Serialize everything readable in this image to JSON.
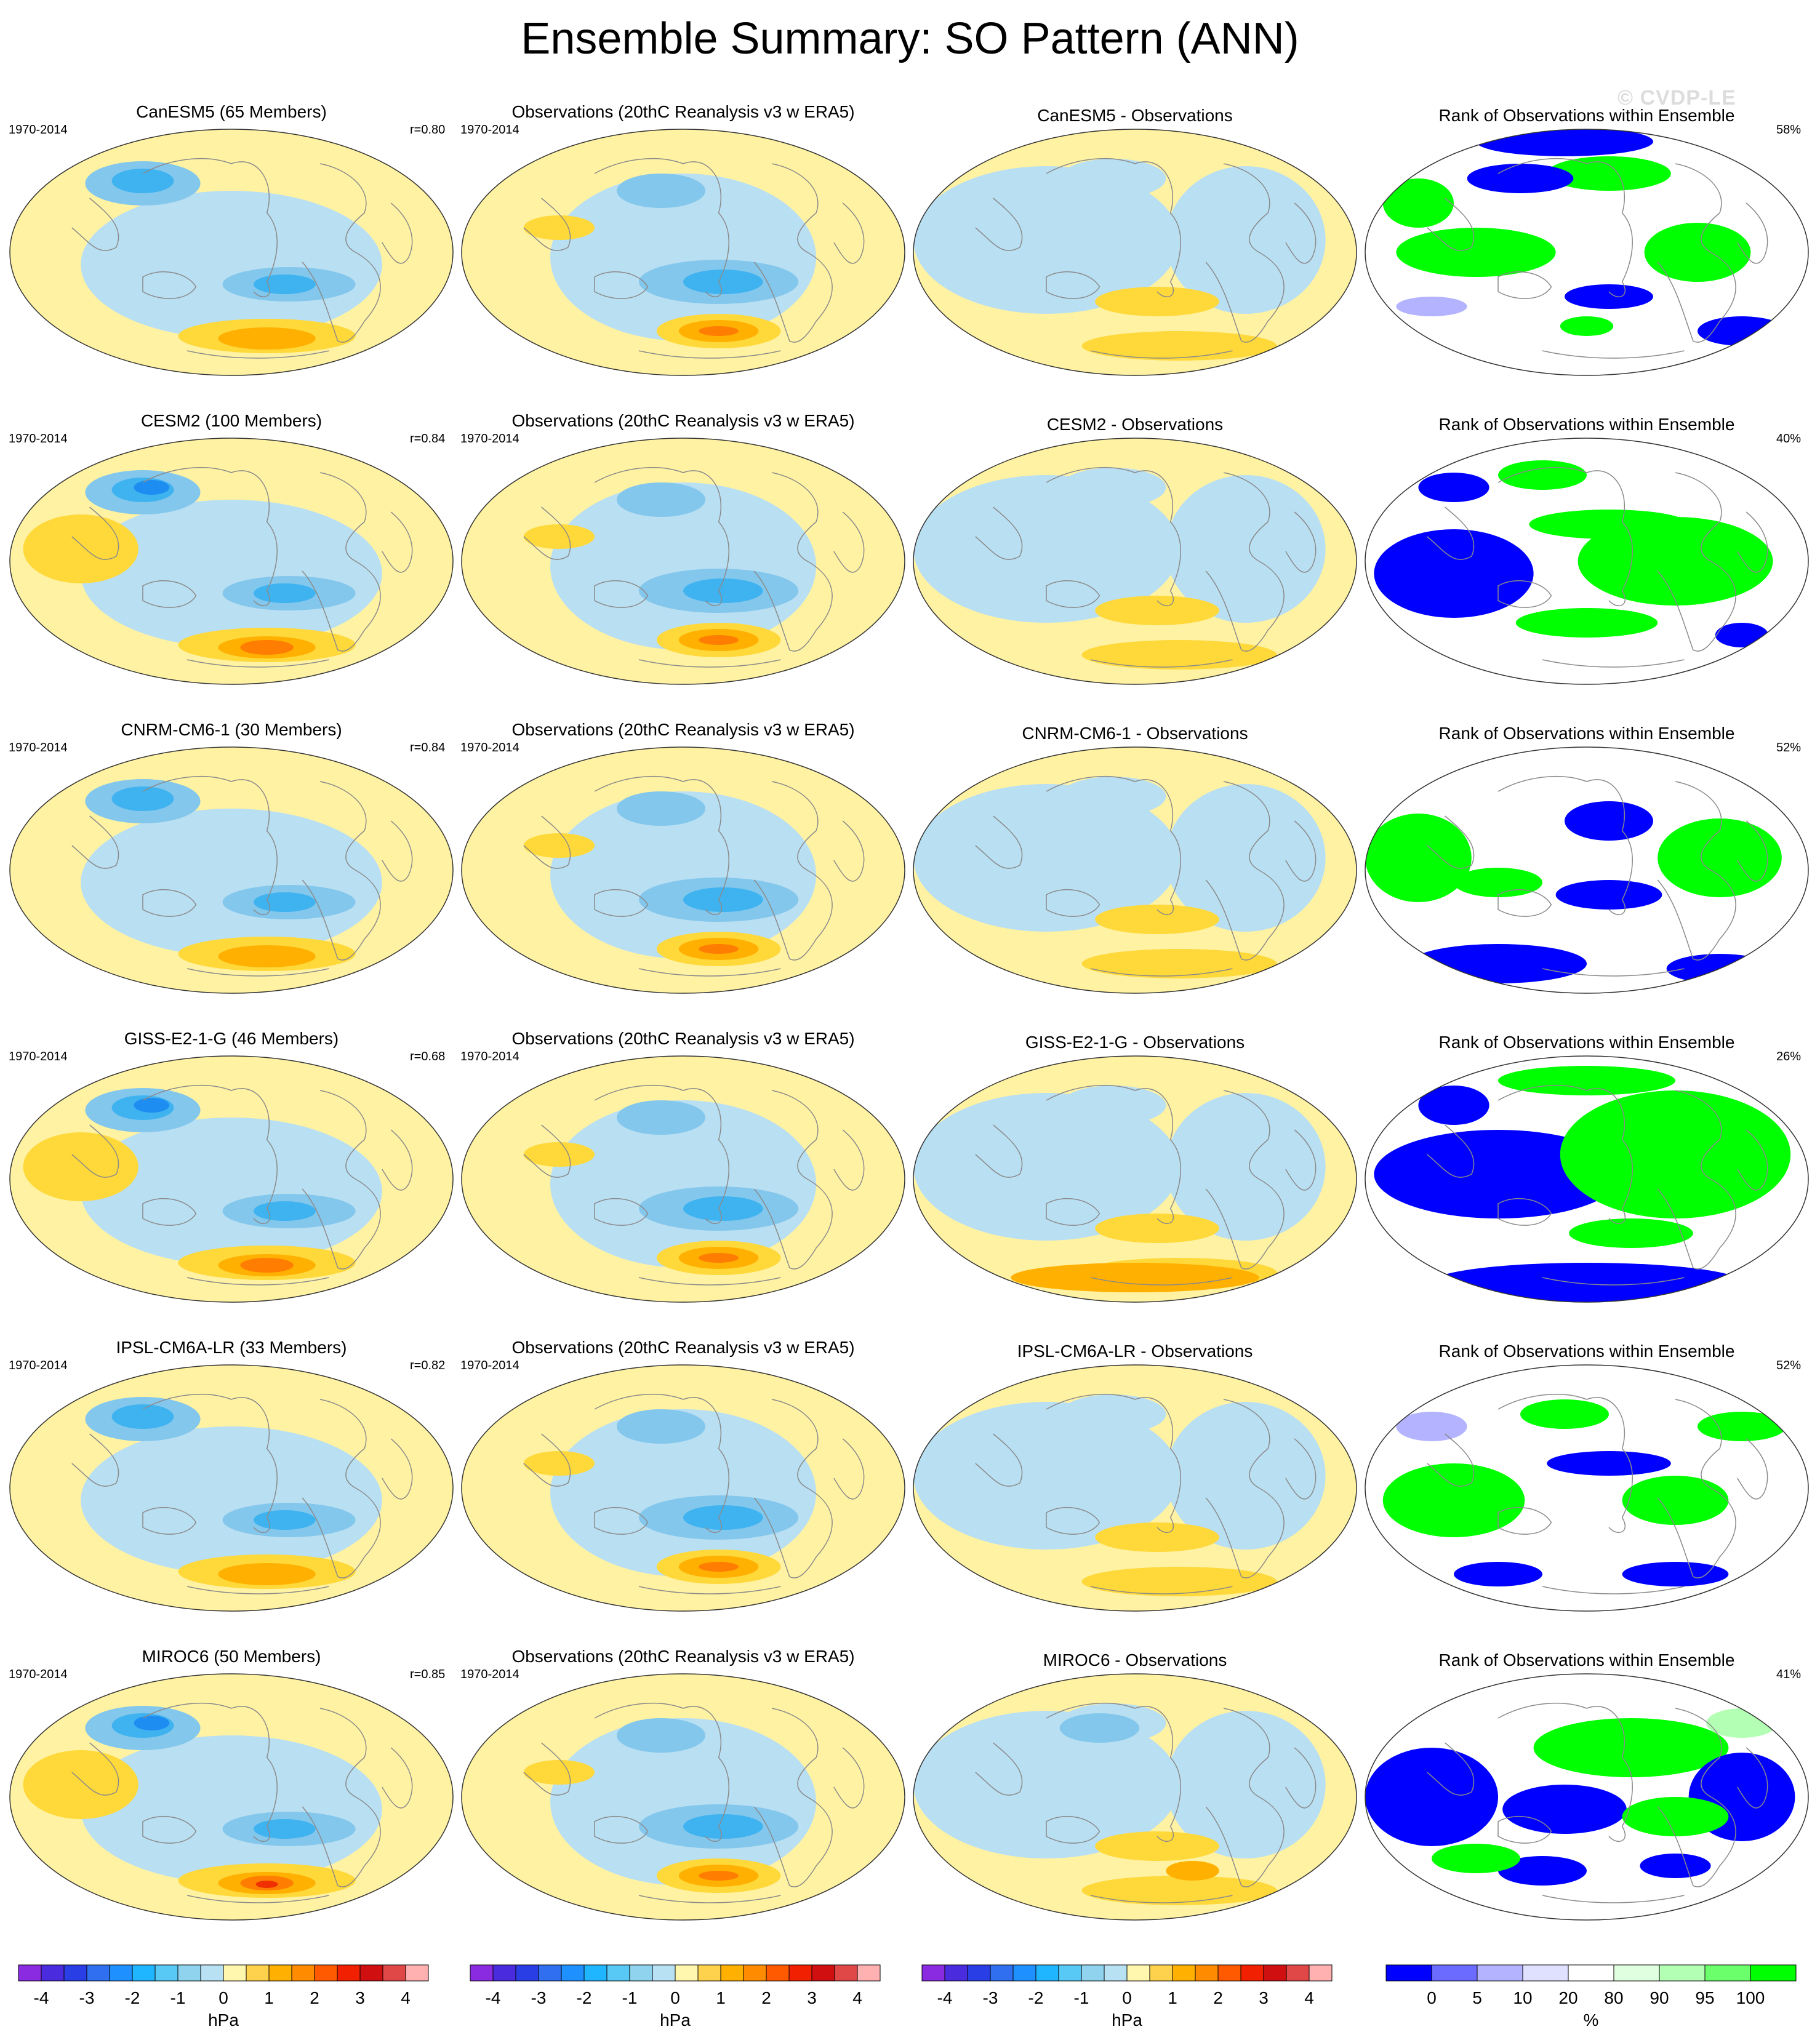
{
  "title": "Ensemble Summary: SO Pattern (ANN)",
  "watermark": "© CVDP-LE",
  "period": "1970-2014",
  "obs_title": "Observations (20thC Reanalysis v3 w ERA5)",
  "rank_title": "Rank of Observations within Ensemble",
  "rows": [
    {
      "model_title": "CanESM5 (65 Members)",
      "r": "r=0.80",
      "diff_title": "CanESM5 - Observations",
      "rank_pct": "58%"
    },
    {
      "model_title": "CESM2 (100 Members)",
      "r": "r=0.84",
      "diff_title": "CESM2 - Observations",
      "rank_pct": "40%"
    },
    {
      "model_title": "CNRM-CM6-1 (30 Members)",
      "r": "r=0.84",
      "diff_title": "CNRM-CM6-1 - Observations",
      "rank_pct": "52%"
    },
    {
      "model_title": "GISS-E2-1-G (46 Members)",
      "r": "r=0.68",
      "diff_title": "GISS-E2-1-G - Observations",
      "rank_pct": "26%"
    },
    {
      "model_title": "IPSL-CM6A-LR (33 Members)",
      "r": "r=0.82",
      "diff_title": "IPSL-CM6A-LR - Observations",
      "rank_pct": "52%"
    },
    {
      "model_title": "MIROC6 (50 Members)",
      "r": "r=0.85",
      "diff_title": "MIROC6 - Observations",
      "rank_pct": "41%"
    }
  ],
  "colorbar_hpa": {
    "unit": "hPa",
    "ticks": [
      "-4",
      "-3",
      "-2",
      "-1",
      "0",
      "1",
      "2",
      "3",
      "4"
    ],
    "colors": [
      "#8a2be2",
      "#4b2bde",
      "#2a3ee6",
      "#2f6ff0",
      "#1e90ff",
      "#1fb6ff",
      "#58c8f5",
      "#8fd3ef",
      "#b8e2f3",
      "#fff7ae",
      "#ffd24d",
      "#ffb000",
      "#ff8c00",
      "#ff5a00",
      "#f02000",
      "#d01010",
      "#e04848",
      "#ffb0b0"
    ]
  },
  "colorbar_rank": {
    "unit": "%",
    "ticks": [
      "0",
      "5",
      "10",
      "20",
      "80",
      "90",
      "95",
      "100"
    ],
    "colors": [
      "#0000ff",
      "#6b6bff",
      "#b3b3ff",
      "#e0e0ff",
      "#ffffff",
      "#e0ffe0",
      "#b3ffb3",
      "#6bff6b",
      "#00ff00"
    ]
  },
  "chart_data": {
    "type": "heatmap",
    "description_variable": "SO Pattern (ANN)",
    "units": "hPa",
    "contour_levels": [
      -4,
      -3.5,
      -3,
      -2.5,
      -2,
      -1.5,
      -1,
      -0.5,
      0,
      0.5,
      1,
      1.5,
      2,
      2.5,
      3,
      3.5,
      4
    ],
    "rank_levels": [
      0,
      5,
      10,
      20,
      80,
      90,
      95,
      100
    ],
    "pattern_correlations": [
      {
        "model": "CanESM5",
        "members": 65,
        "r": 0.8,
        "rank": 58
      },
      {
        "model": "CESM2",
        "members": 100,
        "r": 0.84,
        "rank": 40
      },
      {
        "model": "CNRM-CM6-1",
        "members": 30,
        "r": 0.84,
        "rank": 52
      },
      {
        "model": "GISS-E2-1-G",
        "members": 46,
        "r": 0.68,
        "rank": 26
      },
      {
        "model": "IPSL-CM6A-LR",
        "members": 33,
        "r": 0.82,
        "rank": 52
      },
      {
        "model": "MIROC6",
        "members": 50,
        "r": 0.85,
        "rank": 41
      }
    ]
  }
}
